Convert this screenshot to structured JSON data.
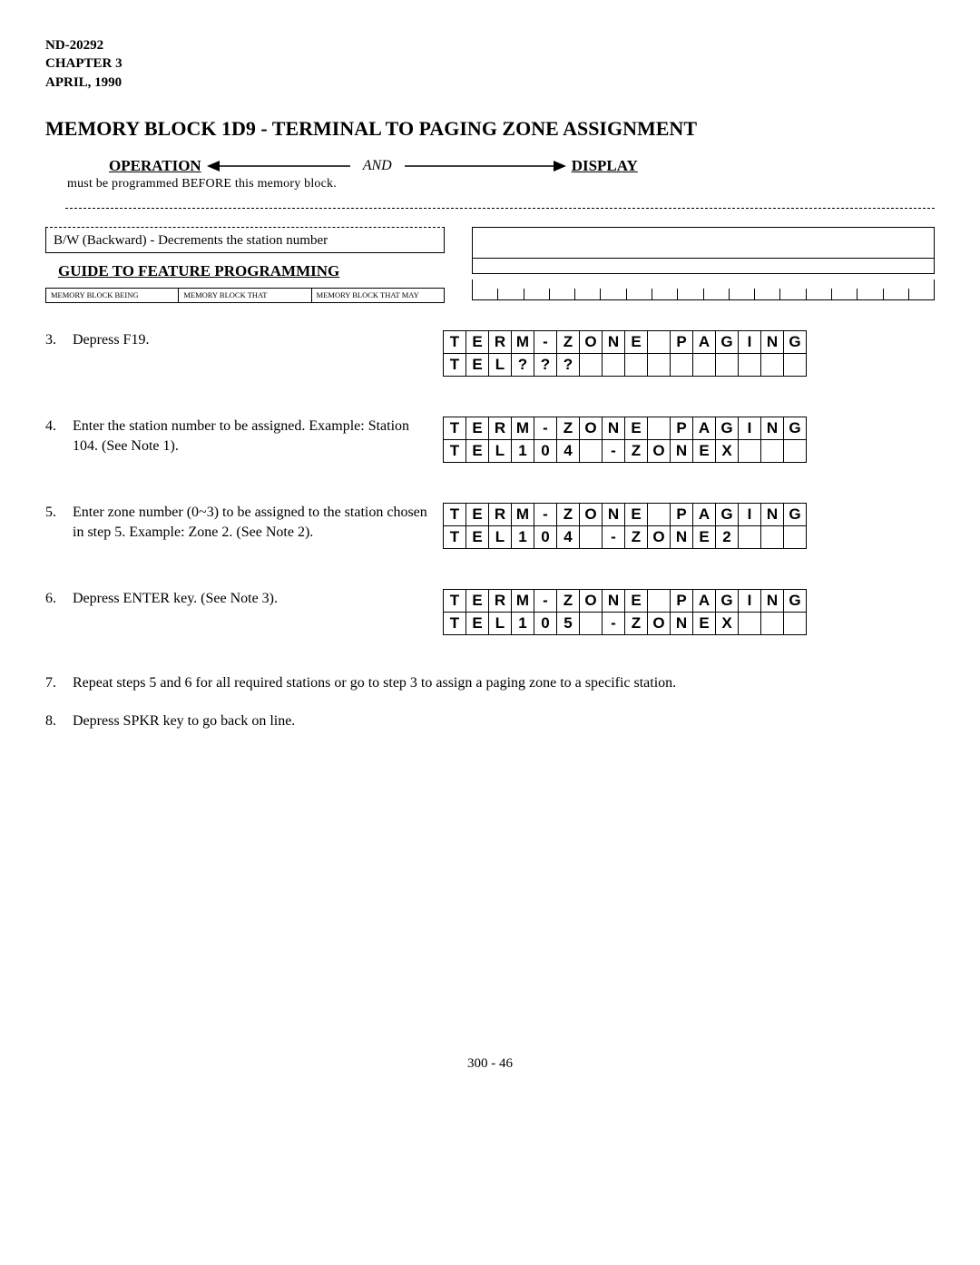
{
  "header": {
    "doc_id": "ND-20292",
    "chapter": "CHAPTER 3",
    "date": "APRIL, 1990"
  },
  "title": "MEMORY BLOCK 1D9 - TERMINAL TO PAGING ZONE ASSIGNMENT",
  "opdisp": {
    "operation": "OPERATION",
    "and": "AND",
    "display": "DISPLAY"
  },
  "fragment_text": "must be programmed BEFORE this memory block.",
  "bw_text": "B/W (Backward) - Decrements the station number",
  "guide_title": "GUIDE TO FEATURE PROGRAMMING",
  "mem_blocks": [
    "MEMORY BLOCK BEING",
    "MEMORY BLOCK THAT",
    "MEMORY BLOCK THAT MAY"
  ],
  "steps": [
    {
      "num": "3.",
      "text": "Depress F19.",
      "grid": [
        [
          "T",
          "E",
          "R",
          "M",
          "-",
          "Z",
          "O",
          "N",
          "E",
          "",
          "P",
          "A",
          "G",
          "I",
          "N",
          "G"
        ],
        [
          "T",
          "E",
          "L",
          "?",
          "?",
          "?",
          "",
          "",
          "",
          "",
          "",
          "",
          "",
          "",
          "",
          ""
        ]
      ]
    },
    {
      "num": "4.",
      "text": "Enter the station number to be assigned. Example: Station 104. (See Note 1).",
      "grid": [
        [
          "T",
          "E",
          "R",
          "M",
          "-",
          "Z",
          "O",
          "N",
          "E",
          "",
          "P",
          "A",
          "G",
          "I",
          "N",
          "G"
        ],
        [
          "T",
          "E",
          "L",
          "1",
          "0",
          "4",
          "",
          "-",
          "Z",
          "O",
          "N",
          "E",
          "X",
          "",
          "",
          ""
        ]
      ]
    },
    {
      "num": "5.",
      "text": "Enter zone number (0~3) to be assigned to the station chosen in step 5.  Example: Zone 2. (See Note 2).",
      "grid": [
        [
          "T",
          "E",
          "R",
          "M",
          "-",
          "Z",
          "O",
          "N",
          "E",
          "",
          "P",
          "A",
          "G",
          "I",
          "N",
          "G"
        ],
        [
          "T",
          "E",
          "L",
          "1",
          "0",
          "4",
          "",
          "-",
          "Z",
          "O",
          "N",
          "E",
          "2",
          "",
          "",
          ""
        ]
      ]
    },
    {
      "num": "6.",
      "text": "Depress ENTER key. (See Note 3).",
      "grid": [
        [
          "T",
          "E",
          "R",
          "M",
          "-",
          "Z",
          "O",
          "N",
          "E",
          "",
          "P",
          "A",
          "G",
          "I",
          "N",
          "G"
        ],
        [
          "T",
          "E",
          "L",
          "1",
          "0",
          "5",
          "",
          "-",
          "Z",
          "O",
          "N",
          "E",
          "X",
          "",
          "",
          ""
        ]
      ]
    }
  ],
  "plain_steps": [
    {
      "num": "7.",
      "text": "Repeat steps 5 and 6 for all required stations or go to step 3 to assign a paging zone to a specific station."
    },
    {
      "num": "8.",
      "text": "Depress SPKR key to go back on line."
    }
  ],
  "footer": "300 - 46"
}
